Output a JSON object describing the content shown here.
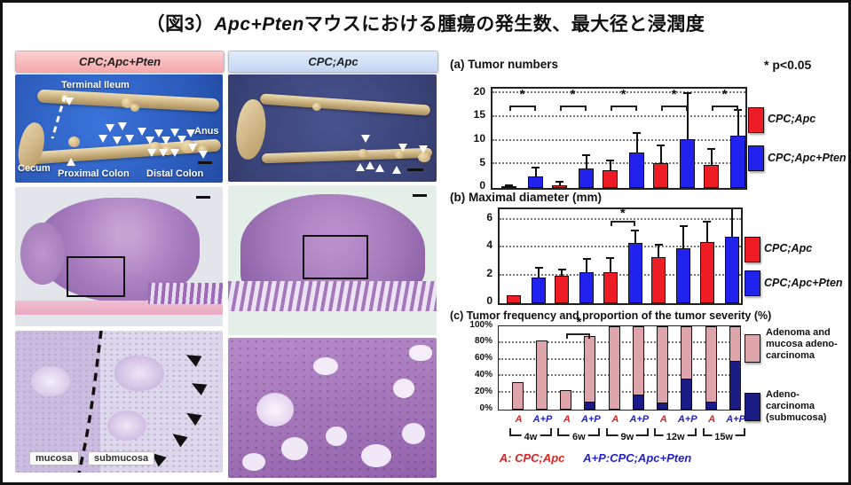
{
  "title": {
    "prefix": "（図3）",
    "gene": "Apc+Pten",
    "suffix": "マウスにおける腫瘍の発生数、最大径と浸潤度"
  },
  "left_panel": {
    "columns": [
      {
        "label": "CPC;Apc+Pten",
        "header_color": "#f5a9ab"
      },
      {
        "label": "CPC;Apc",
        "header_color": "#c3d6f0"
      }
    ],
    "gross_labels": {
      "terminal_ileum": "Terminal Ileum",
      "anus": "Anus",
      "cecum": "Cecum",
      "proximal_colon": "Proximal Colon",
      "distal_colon": "Distal Colon"
    },
    "histology_labels": {
      "mucosa": "mucosa",
      "submucosa": "submucosa"
    }
  },
  "chart_data": [
    {
      "id": "a",
      "type": "bar",
      "title": "(a) Tumor numbers",
      "note": "* p<0.05",
      "categories": [
        "4w",
        "6w",
        "9w",
        "12w",
        "15w"
      ],
      "series": [
        {
          "name": "CPC;Apc",
          "color": "#ee1c24",
          "values": [
            0.3,
            0.6,
            3.7,
            5.2,
            4.8
          ],
          "errors": [
            0.2,
            0.7,
            2.2,
            3.8,
            3.4
          ]
        },
        {
          "name": "CPC;Apc+Pten",
          "color": "#2222ee",
          "values": [
            2.4,
            4.2,
            7.5,
            10.3,
            11.0
          ],
          "errors": [
            2.0,
            2.8,
            4.1,
            9.7,
            5.5
          ]
        }
      ],
      "ylim": [
        0,
        20
      ],
      "yticks": [
        0,
        5,
        10,
        15,
        20
      ],
      "grid": "dotted horizontal",
      "legend_position": "right",
      "significance": {
        "pairs": [
          0,
          1,
          2,
          3,
          4
        ],
        "bracket_y": 17.5,
        "star_y": 19.6
      }
    },
    {
      "id": "b",
      "type": "bar",
      "title": "(b) Maximal diameter (mm)",
      "categories": [
        "4w",
        "6w",
        "9w",
        "12w",
        "15w"
      ],
      "series": [
        {
          "name": "CPC;Apc",
          "color": "#ee1c24",
          "values": [
            0.55,
            2.0,
            2.2,
            3.3,
            4.4
          ],
          "errors": [
            0,
            0.45,
            1.05,
            0.9,
            1.45
          ]
        },
        {
          "name": "CPC;Apc+Pten",
          "color": "#2222ee",
          "values": [
            1.85,
            2.2,
            4.35,
            3.95,
            4.75
          ],
          "errors": [
            0.7,
            1.0,
            0.85,
            1.6,
            2.2
          ]
        }
      ],
      "ylim": [
        0,
        6
      ],
      "yticks": [
        0,
        2,
        4,
        6
      ],
      "grid": "dotted horizontal",
      "legend_position": "right",
      "significance": {
        "pairs": [
          2
        ],
        "bracket_y": 5.95,
        "star_y": 6.45
      }
    },
    {
      "id": "c",
      "type": "stacked-bar",
      "title": "(c) Tumor frequency and proportion of the tumor severity (%)",
      "groups": [
        "4w",
        "6w",
        "9w",
        "12w",
        "15w"
      ],
      "bar_labels": [
        "A",
        "A+P"
      ],
      "bar_label_colors": {
        "A": "#e02020",
        "A+P": "#2222cc"
      },
      "series": [
        {
          "name": "Adenoma and mucosa adeno-carcinoma",
          "color": "#dda4a9"
        },
        {
          "name": "Adeno-carcinoma (submucosa)",
          "color": "#1b1b86"
        }
      ],
      "bars": [
        {
          "group": "4w",
          "label": "A",
          "total": 33,
          "submucosa": 0
        },
        {
          "group": "4w",
          "label": "A+P",
          "total": 83,
          "submucosa": 0
        },
        {
          "group": "6w",
          "label": "A",
          "total": 23,
          "submucosa": 0
        },
        {
          "group": "6w",
          "label": "A+P",
          "total": 88,
          "submucosa": 10
        },
        {
          "group": "9w",
          "label": "A",
          "total": 100,
          "submucosa": 0
        },
        {
          "group": "9w",
          "label": "A+P",
          "total": 100,
          "submucosa": 18
        },
        {
          "group": "12w",
          "label": "A",
          "total": 100,
          "submucosa": 8
        },
        {
          "group": "12w",
          "label": "A+P",
          "total": 100,
          "submucosa": 37
        },
        {
          "group": "15w",
          "label": "A",
          "total": 100,
          "submucosa": 10
        },
        {
          "group": "15w",
          "label": "A+P",
          "total": 100,
          "submucosa": 58
        }
      ],
      "ylim": [
        0,
        100
      ],
      "yticks": [
        "0%",
        "20%",
        "40%",
        "60%",
        "80%",
        "100%"
      ],
      "grid": "dotted horizontal",
      "significance": {
        "pair_group": "6w",
        "bracket_y": 92,
        "star_y": 104
      },
      "caption": {
        "a": "A: CPC;Apc",
        "ap": "A+P:CPC;Apc+Pten"
      }
    }
  ]
}
